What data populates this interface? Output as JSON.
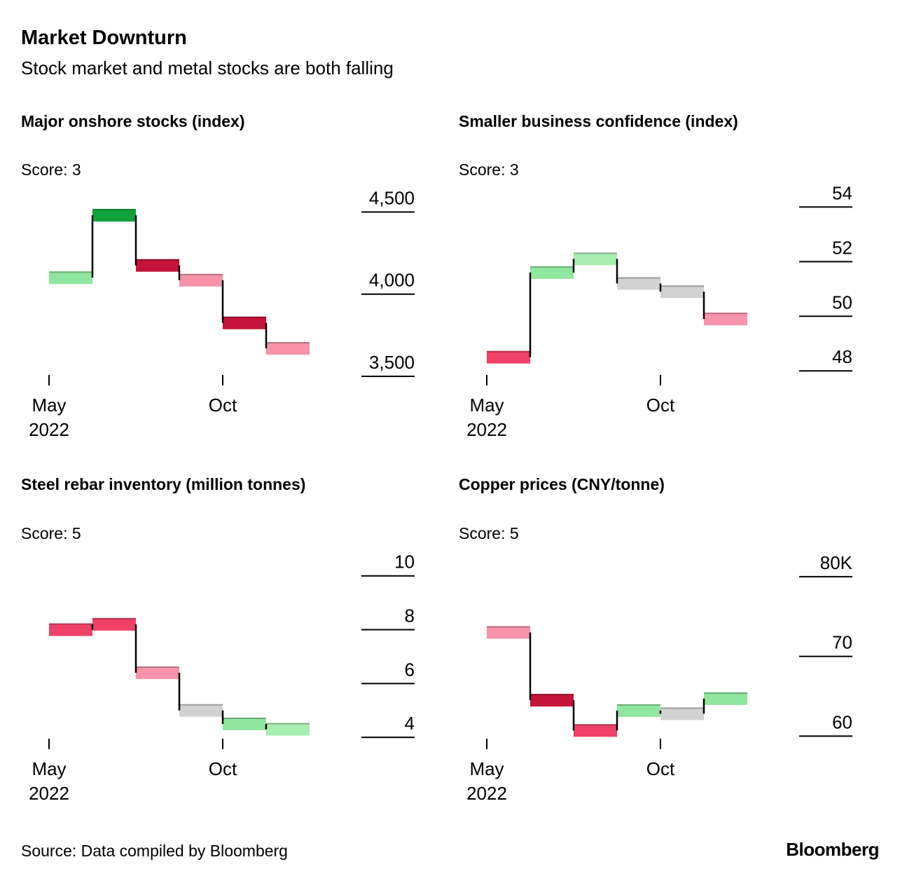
{
  "header": {
    "title": "Market Downturn",
    "subtitle": "Stock market and metal stocks are both falling"
  },
  "footer": {
    "source": "Source: Data compiled by Bloomberg",
    "logo": "Bloomberg"
  },
  "palette": {
    "green": "#0fa23a",
    "lightgreen": "#8fe69e",
    "palegreen": "#a8edb1",
    "darkred": "#c51438",
    "red": "#ef4266",
    "pink": "#f693a8",
    "gray": "#d2d2d2",
    "connector": "#000000",
    "axis": "#000000"
  },
  "chart_data": [
    {
      "type": "bar",
      "title": "Major onshore stocks (index)",
      "score_label": "Score: 3",
      "values": [
        4100,
        4480,
        4175,
        4085,
        3825,
        3670
      ],
      "colors": [
        "lightgreen",
        "green",
        "darkred",
        "pink",
        "darkred",
        "pink"
      ],
      "yticks": [
        4500,
        4000,
        3500
      ],
      "ytick_labels": [
        "4,500",
        "4,000",
        "3,500"
      ],
      "ylim": [
        3500,
        4630
      ],
      "xticks": [
        {
          "label_lines": [
            "May",
            "2022"
          ],
          "bar_index": 0
        },
        {
          "label_lines": [
            "Oct"
          ],
          "bar_index": 4
        }
      ]
    },
    {
      "type": "bar",
      "title": "Smaller business confidence (index)",
      "score_label": "Score: 3",
      "values": [
        48.5,
        51.6,
        52.1,
        51.2,
        50.9,
        49.9
      ],
      "colors": [
        "red",
        "lightgreen",
        "palegreen",
        "gray",
        "gray",
        "pink"
      ],
      "yticks": [
        54,
        52,
        50,
        48
      ],
      "ytick_labels": [
        "54",
        "52",
        "50",
        "48"
      ],
      "ylim": [
        47.8,
        54.6
      ],
      "xticks": [
        {
          "label_lines": [
            "May",
            "2022"
          ],
          "bar_index": 0
        },
        {
          "label_lines": [
            "Oct"
          ],
          "bar_index": 4
        }
      ]
    },
    {
      "type": "bar",
      "title": "Steel rebar inventory (million tonnes)",
      "score_label": "Score: 5",
      "values": [
        8.0,
        8.2,
        6.4,
        5.0,
        4.5,
        4.3
      ],
      "colors": [
        "red",
        "red",
        "pink",
        "gray",
        "lightgreen",
        "palegreen"
      ],
      "yticks": [
        10,
        8,
        6,
        4
      ],
      "ytick_labels": [
        "10",
        "8",
        "6",
        "4"
      ],
      "ylim": [
        3.9,
        10.8
      ],
      "xticks": [
        {
          "label_lines": [
            "May",
            "2022"
          ],
          "bar_index": 0
        },
        {
          "label_lines": [
            "Oct"
          ],
          "bar_index": 4
        }
      ]
    },
    {
      "type": "bar",
      "title": "Copper prices (CNY/tonne)",
      "score_label": "Score: 5",
      "values": [
        73,
        64.5,
        60.7,
        63.2,
        62.8,
        64.7
      ],
      "colors": [
        "pink",
        "darkred",
        "red",
        "lightgreen",
        "gray",
        "lightgreen"
      ],
      "yticks": [
        80,
        70,
        60
      ],
      "ytick_labels": [
        "80K",
        "70",
        "60"
      ],
      "ylim": [
        59.5,
        82.8
      ],
      "xticks": [
        {
          "label_lines": [
            "May",
            "2022"
          ],
          "bar_index": 0
        },
        {
          "label_lines": [
            "Oct"
          ],
          "bar_index": 4
        }
      ]
    }
  ]
}
